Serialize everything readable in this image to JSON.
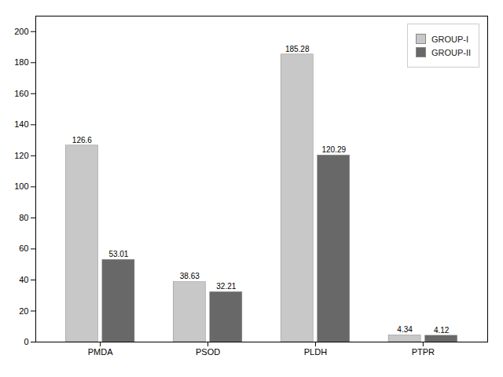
{
  "chart_data": {
    "type": "bar",
    "categories": [
      "PMDA",
      "PSOD",
      "PLDH",
      "PTPR"
    ],
    "series": [
      {
        "name": "GROUP-I",
        "color": "#C8C8C8",
        "values": [
          126.6,
          38.63,
          185.28,
          4.34
        ]
      },
      {
        "name": "GROUP-II",
        "color": "#686868",
        "values": [
          53.01,
          32.21,
          120.29,
          4.12
        ]
      }
    ],
    "ylim": [
      0,
      210
    ],
    "yticks": [
      0,
      20,
      40,
      60,
      80,
      100,
      120,
      140,
      160,
      180,
      200
    ],
    "grid": false,
    "legend": "upper right",
    "data_labels": true
  }
}
